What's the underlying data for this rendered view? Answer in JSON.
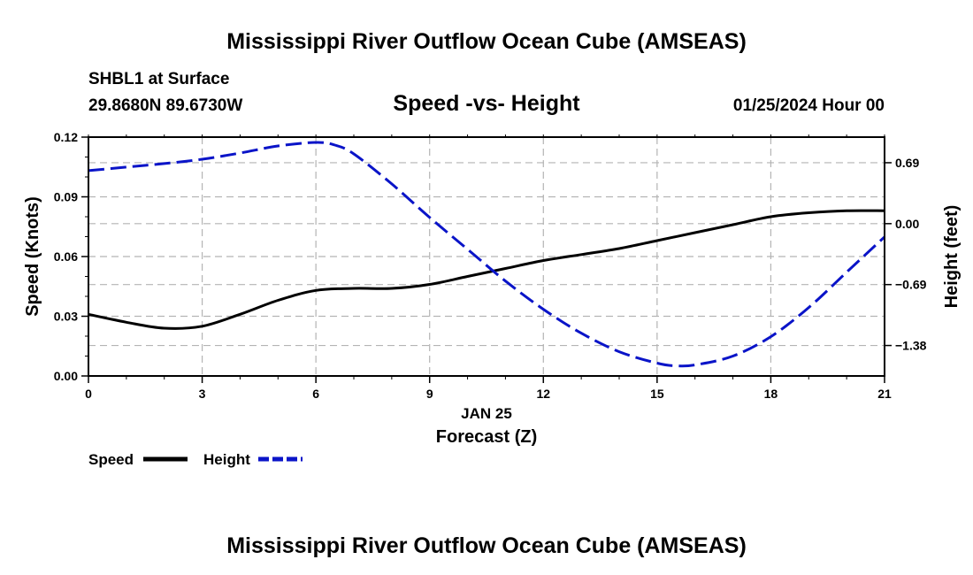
{
  "header": {
    "title": "Mississippi River Outflow Ocean Cube (AMSEAS)",
    "station": "SHBL1 at Surface",
    "location": "29.8680N  89.6730W",
    "subtitle": "Speed -vs- Height",
    "datetime": "01/25/2024 Hour 00"
  },
  "footer": {
    "title": "Mississippi River Outflow Ocean Cube (AMSEAS)"
  },
  "chart_data": {
    "type": "line",
    "title": "Speed -vs- Height",
    "xlabel": "Forecast (Z)",
    "date_label": "JAN 25",
    "ylabel": "Speed (Knots)",
    "y2label": "Height (feet)",
    "xlim": [
      0,
      21
    ],
    "ylim": [
      0,
      0.12
    ],
    "y2lim": [
      -1.725,
      0.98
    ],
    "xticks": [
      "0",
      "3",
      "6",
      "9",
      "12",
      "15",
      "18",
      "21"
    ],
    "yticks": [
      "0.00",
      "0.03",
      "0.06",
      "0.09",
      "0.12"
    ],
    "y2ticks": [
      "−1.38",
      "−0.69",
      "0.00",
      "0.69"
    ],
    "grid": true,
    "legend": {
      "position": "bottom-left"
    },
    "colors": {
      "speed": "#000000",
      "height": "#0a14c8",
      "grid": "#b4b4b4"
    },
    "series": [
      {
        "name": "Speed",
        "axis": "left",
        "style": "solid",
        "x": [
          0,
          1,
          2,
          3,
          4,
          5,
          6,
          7,
          8,
          9,
          10,
          11,
          12,
          13,
          14,
          15,
          16,
          17,
          18,
          19,
          20,
          21
        ],
        "values": [
          0.031,
          0.027,
          0.024,
          0.025,
          0.031,
          0.038,
          0.043,
          0.044,
          0.044,
          0.046,
          0.05,
          0.054,
          0.058,
          0.061,
          0.064,
          0.068,
          0.072,
          0.076,
          0.08,
          0.082,
          0.083,
          0.083
        ]
      },
      {
        "name": "Height",
        "axis": "right",
        "style": "dashed",
        "x": [
          0,
          1,
          2,
          3,
          4,
          5,
          6,
          6.5,
          7,
          8,
          9,
          10,
          11,
          12,
          13,
          14,
          15,
          15.5,
          16,
          17,
          18,
          19,
          20,
          21
        ],
        "values": [
          0.6,
          0.64,
          0.68,
          0.73,
          0.8,
          0.88,
          0.92,
          0.89,
          0.79,
          0.45,
          0.07,
          -0.29,
          -0.65,
          -0.97,
          -1.24,
          -1.45,
          -1.58,
          -1.61,
          -1.6,
          -1.5,
          -1.28,
          -0.95,
          -0.55,
          -0.15
        ]
      }
    ]
  }
}
